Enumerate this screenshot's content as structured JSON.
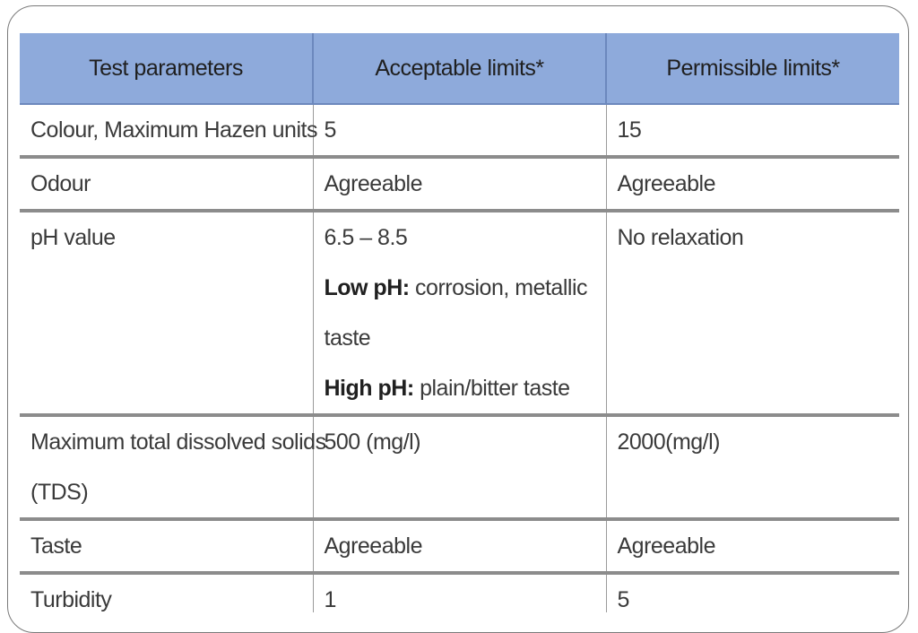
{
  "table": {
    "headers": [
      "Test parameters",
      "Acceptable limits*",
      "Permissible limits*"
    ],
    "rows": [
      {
        "parameter": "Colour, Maximum Hazen units",
        "acceptable": "5",
        "permissible": "15"
      },
      {
        "parameter": "Odour",
        "acceptable": "Agreeable",
        "permissible": "Agreeable"
      },
      {
        "parameter": "pH value",
        "acceptable": "6.5 – 8.5",
        "acceptable_notes": [
          {
            "label": "Low pH:",
            "text": " corrosion, metallic"
          },
          {
            "label": "",
            "text": "taste"
          },
          {
            "label": "High pH:",
            "text": " plain/bitter taste"
          }
        ],
        "permissible": "No relaxation"
      },
      {
        "parameter_line1": "Maximum total dissolved solids",
        "parameter_line2": "(TDS)",
        "acceptable": "500 (mg/l)",
        "permissible": "2000(mg/l)"
      },
      {
        "parameter": "Taste",
        "acceptable": "Agreeable",
        "permissible": "Agreeable"
      },
      {
        "parameter": "Turbidity",
        "acceptable": "1",
        "permissible": "5"
      }
    ]
  },
  "colors": {
    "header_bg": "#8eaadb",
    "frame_border": "#7a7a7a"
  }
}
